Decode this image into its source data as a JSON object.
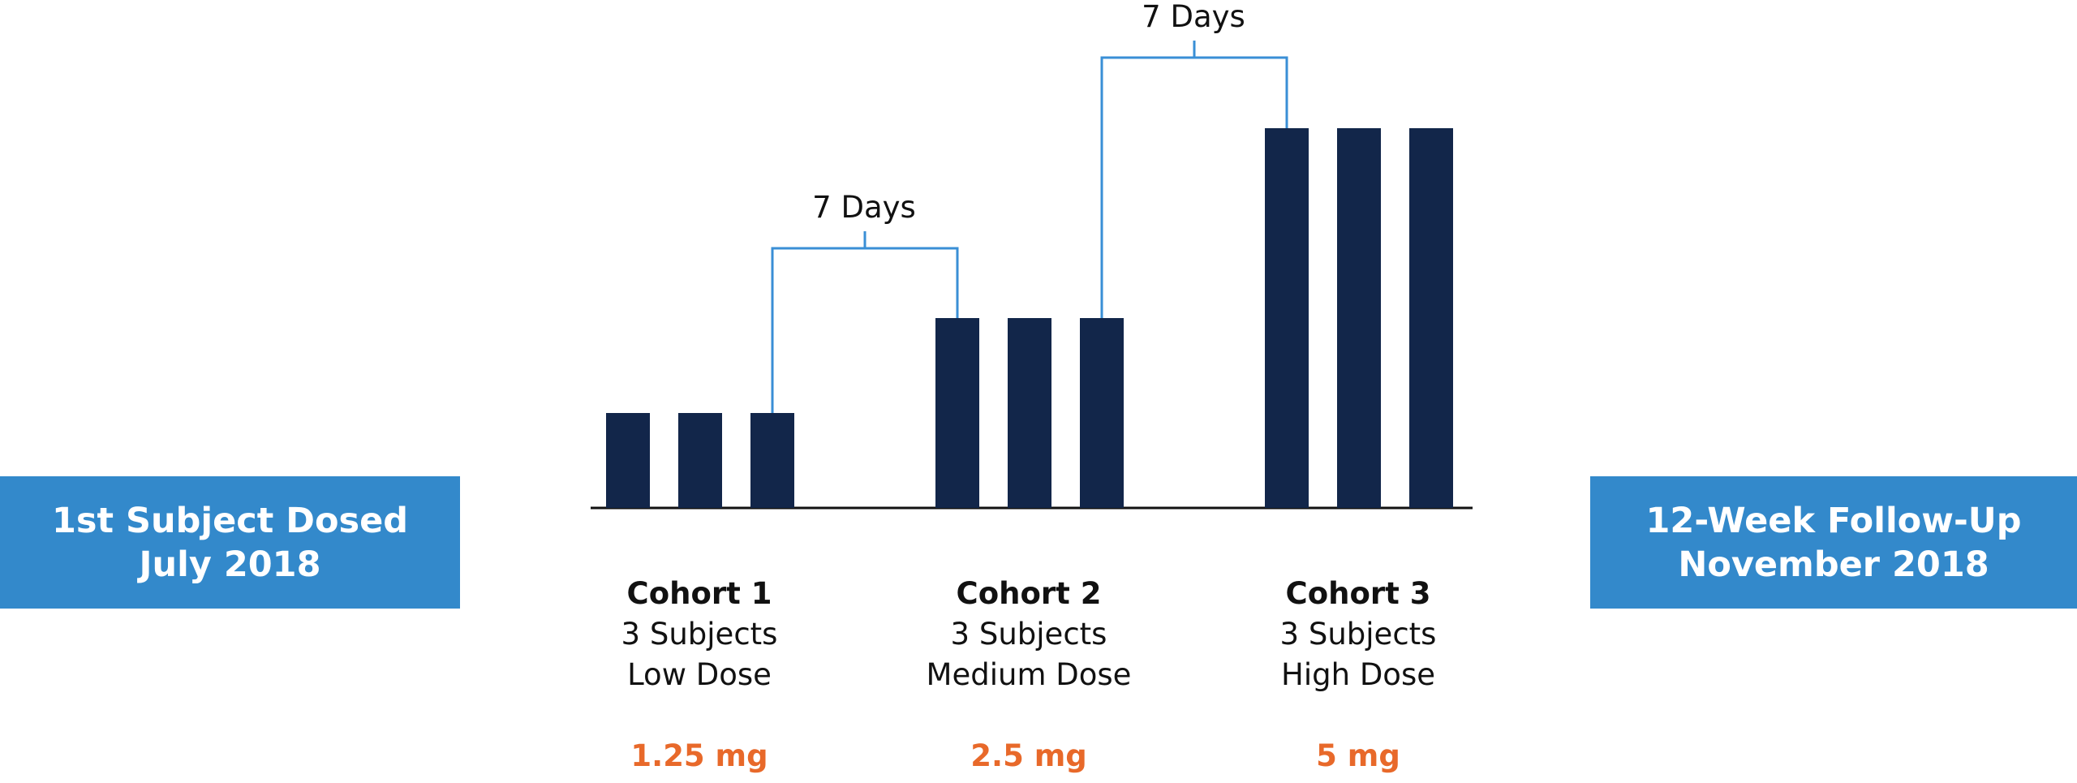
{
  "start": {
    "line1": "1st Subject Dosed",
    "line2": "July 2018"
  },
  "end": {
    "line1": "12-Week Follow-Up",
    "line2": "November 2018"
  },
  "cohorts": [
    {
      "title": "Cohort 1",
      "subjects": "3 Subjects",
      "dose_level": "Low Dose",
      "dose": "1.25 mg",
      "relative_height": 1
    },
    {
      "title": "Cohort 2",
      "subjects": "3 Subjects",
      "dose_level": "Medium Dose",
      "dose": "2.5 mg",
      "relative_height": 2
    },
    {
      "title": "Cohort 3",
      "subjects": "3 Subjects",
      "dose_level": "High Dose",
      "dose": "5 mg",
      "relative_height": 4
    }
  ],
  "intervals": [
    {
      "label": "7 Days"
    },
    {
      "label": "7 Days"
    }
  ],
  "colors": {
    "bar": "#12264a",
    "bracket": "#3a8fd6",
    "box": "#3389cb",
    "dose_text": "#e8692a"
  }
}
